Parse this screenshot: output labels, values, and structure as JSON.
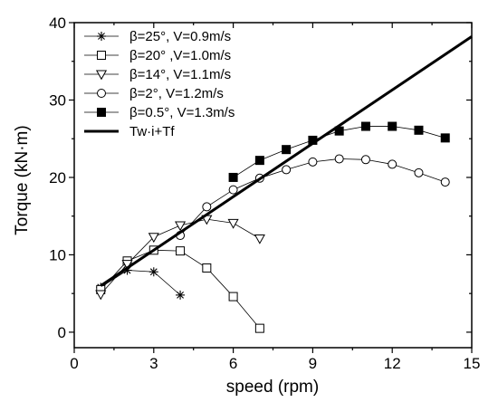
{
  "chart_data": {
    "type": "line",
    "xlabel": "speed (rpm)",
    "ylabel": "Torque (kN·m)",
    "xlim": [
      0,
      15
    ],
    "ylim": [
      -2,
      40
    ],
    "xticks": [
      0,
      3,
      6,
      9,
      12,
      15
    ],
    "yticks": [
      0,
      10,
      20,
      30,
      40
    ],
    "grid": false,
    "legend_position": "top-left",
    "series": [
      {
        "name": "β=25°, V=0.9m/s",
        "marker": "asterisk",
        "color": "#000000",
        "x": [
          1,
          2,
          3,
          4
        ],
        "y": [
          5.8,
          8.0,
          7.8,
          4.8
        ]
      },
      {
        "name": "β=20° ,V=1.0m/s",
        "marker": "square-open",
        "color": "#000000",
        "x": [
          1,
          2,
          3,
          4,
          5,
          6,
          7
        ],
        "y": [
          5.5,
          9.2,
          10.6,
          10.5,
          8.3,
          4.6,
          0.5
        ]
      },
      {
        "name": "β=14°, V=1.1m/s",
        "marker": "triangle-down-open",
        "color": "#000000",
        "x": [
          1,
          2,
          3,
          4,
          5,
          6,
          7
        ],
        "y": [
          4.9,
          8.8,
          12.3,
          13.8,
          14.6,
          14.1,
          12.1
        ]
      },
      {
        "name": "β=2°, V=1.2m/s",
        "marker": "circle-open",
        "color": "#000000",
        "x": [
          4,
          5,
          6,
          7,
          8,
          9,
          10,
          11,
          12,
          13,
          14
        ],
        "y": [
          12.5,
          16.2,
          18.4,
          19.9,
          21.0,
          22.0,
          22.4,
          22.3,
          21.7,
          20.6,
          19.4
        ]
      },
      {
        "name": "β=0.5°, V=1.3m/s",
        "marker": "square-filled",
        "color": "#000000",
        "x": [
          6,
          7,
          8,
          9,
          10,
          11,
          12,
          13,
          14
        ],
        "y": [
          20.0,
          22.2,
          23.6,
          24.8,
          26.0,
          26.6,
          26.6,
          26.1,
          25.1
        ]
      },
      {
        "name": "Tw·i+Tf",
        "marker": "none",
        "color": "#000000",
        "style": "thick-line",
        "x": [
          1,
          15
        ],
        "y": [
          6.0,
          38.2
        ]
      }
    ]
  }
}
